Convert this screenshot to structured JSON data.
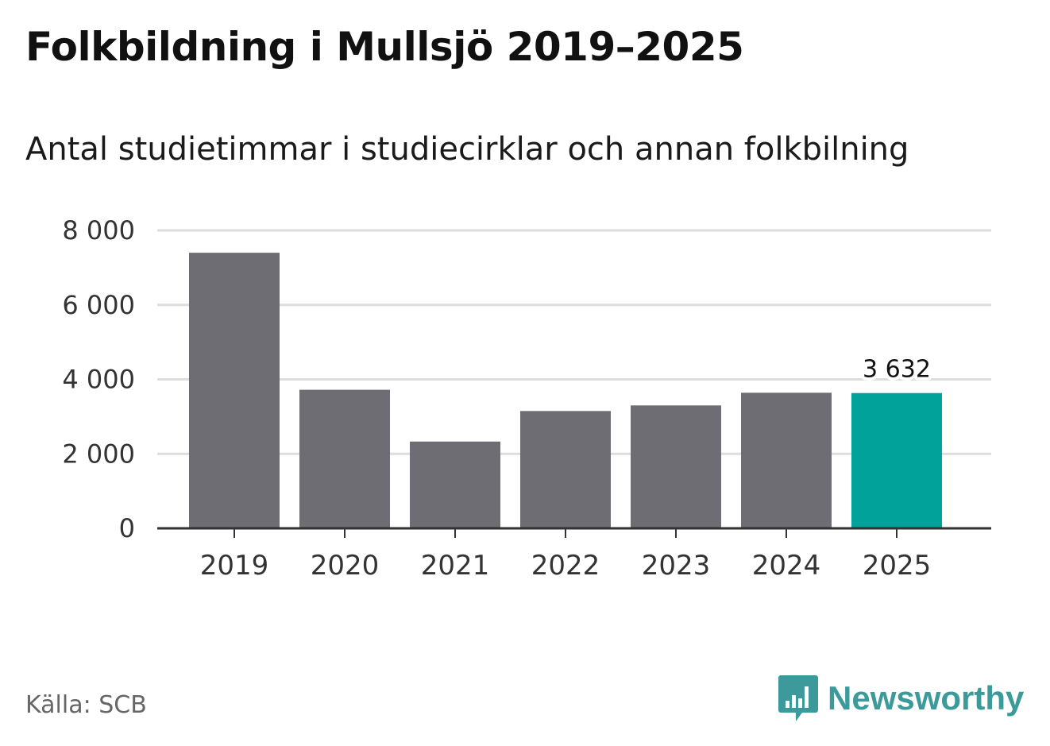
{
  "header": {
    "title": "Folkbildning i Mullsjö 2019–2025",
    "subtitle": "Antal studietimmar i studiecirklar och annan folkbilning"
  },
  "footer": {
    "source": "Källa: SCB",
    "brand": "Newsworthy"
  },
  "colors": {
    "bar_default": "#6e6d73",
    "bar_highlight": "#00a29a",
    "gridline": "#dddddd",
    "axis": "#333333",
    "brand": "#3d9a9a"
  },
  "chart_data": {
    "type": "bar",
    "title": "Folkbildning i Mullsjö 2019–2025",
    "subtitle": "Antal studietimmar i studiecirklar och annan folkbilning",
    "xlabel": "",
    "ylabel": "",
    "categories": [
      "2019",
      "2020",
      "2021",
      "2022",
      "2023",
      "2024",
      "2025"
    ],
    "values": [
      7400,
      3720,
      2330,
      3150,
      3300,
      3640,
      3632
    ],
    "highlight_index": 6,
    "data_labels": [
      {
        "index": 6,
        "text": "3 632"
      }
    ],
    "ylim": [
      0,
      8000
    ],
    "yticks": [
      0,
      2000,
      4000,
      6000,
      8000
    ],
    "ytick_labels": [
      "0",
      "2 000",
      "4 000",
      "6 000",
      "8 000"
    ],
    "grid": true,
    "legend": "none"
  }
}
